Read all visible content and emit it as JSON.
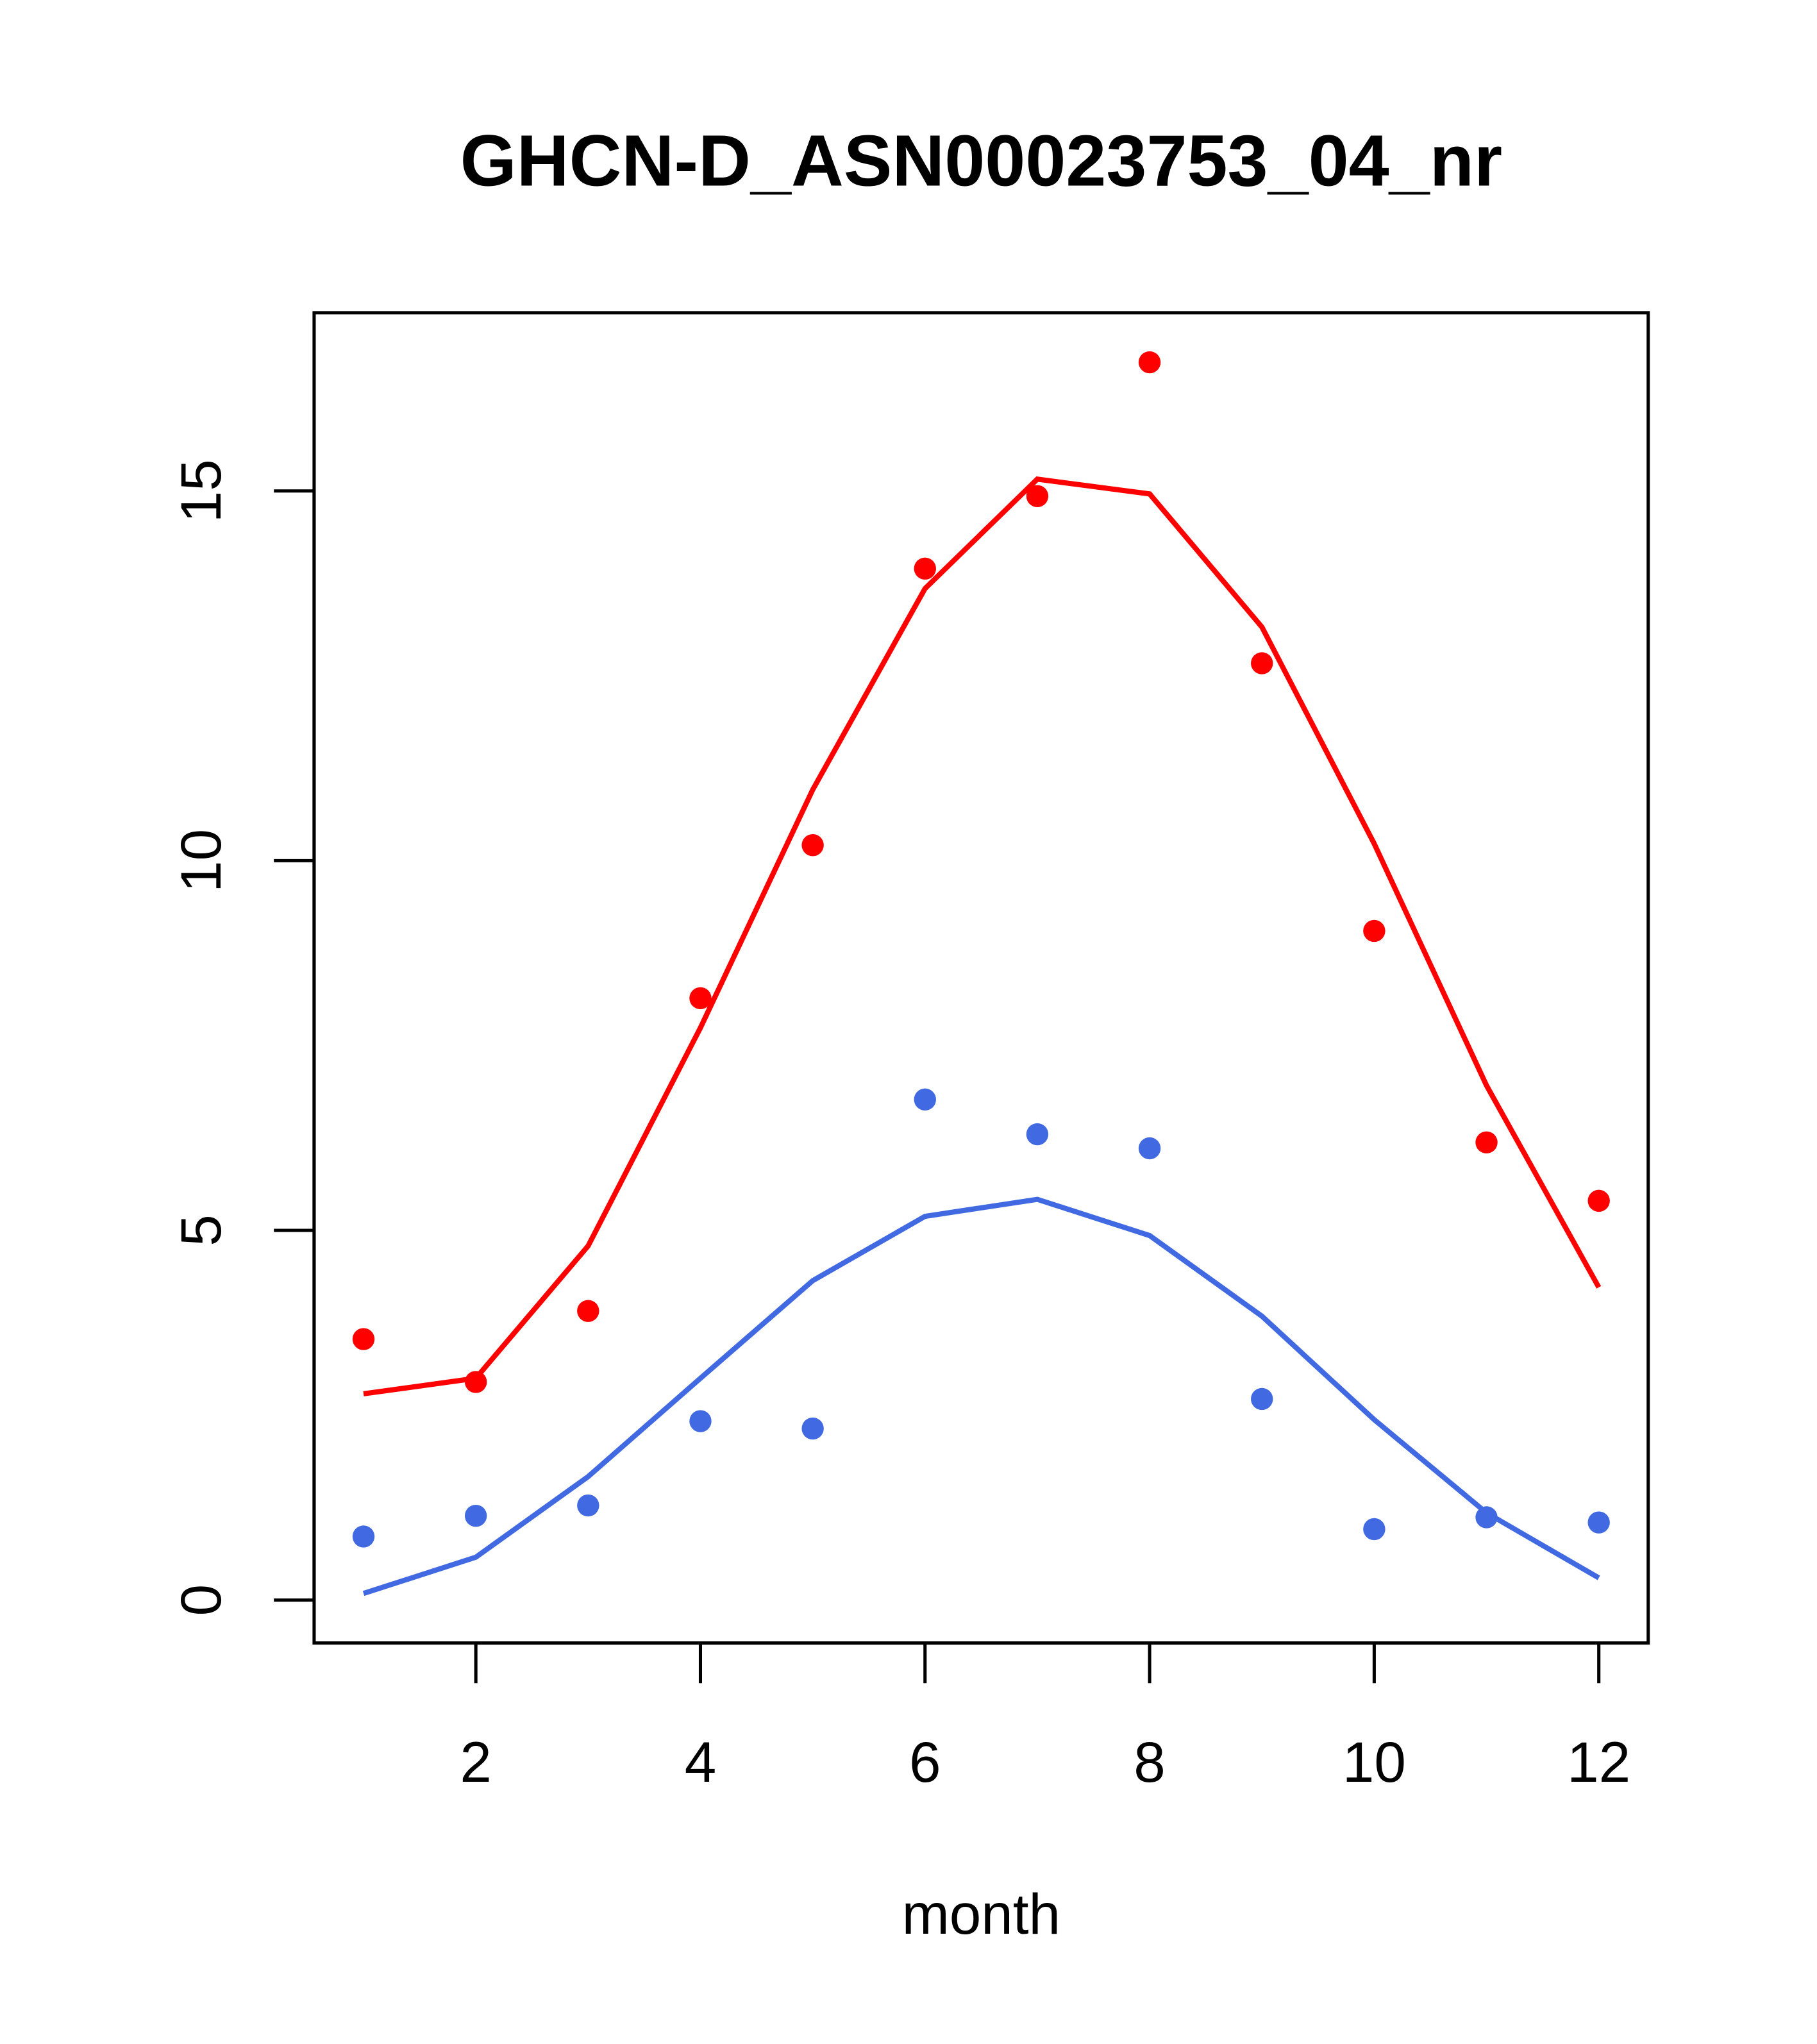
{
  "chart_data": {
    "type": "line",
    "title": "GHCN-D_ASN00023753_04_nr",
    "xlabel": "month",
    "ylabel": "",
    "xlim": [
      0.56,
      12.44
    ],
    "ylim": [
      -0.58,
      17.41
    ],
    "xticks": [
      2,
      4,
      6,
      8,
      10,
      12
    ],
    "yticks": [
      0,
      5,
      10,
      15
    ],
    "grid": false,
    "x": [
      1,
      2,
      3,
      4,
      5,
      6,
      7,
      8,
      9,
      10,
      11,
      12
    ],
    "series": [
      {
        "name": "",
        "kind": "points",
        "color": "#ff0000",
        "values": [
          3.53,
          2.95,
          3.91,
          8.14,
          10.21,
          13.95,
          14.93,
          16.74,
          12.67,
          9.05,
          6.19,
          5.4
        ]
      },
      {
        "name": "",
        "kind": "line",
        "color": "#ff0000",
        "values": [
          2.79,
          3.0,
          4.79,
          7.74,
          10.96,
          13.68,
          15.16,
          14.96,
          13.16,
          10.23,
          6.96,
          4.23
        ]
      },
      {
        "name": "",
        "kind": "points",
        "color": "#4169e1",
        "values": [
          0.86,
          1.14,
          1.28,
          2.42,
          2.32,
          6.77,
          6.3,
          6.11,
          2.72,
          0.96,
          1.12,
          1.05
        ]
      },
      {
        "name": "",
        "kind": "line",
        "color": "#4169e1",
        "values": [
          0.09,
          0.58,
          1.67,
          3.0,
          4.32,
          5.19,
          5.42,
          4.93,
          3.84,
          2.44,
          1.18,
          0.3
        ]
      }
    ]
  }
}
